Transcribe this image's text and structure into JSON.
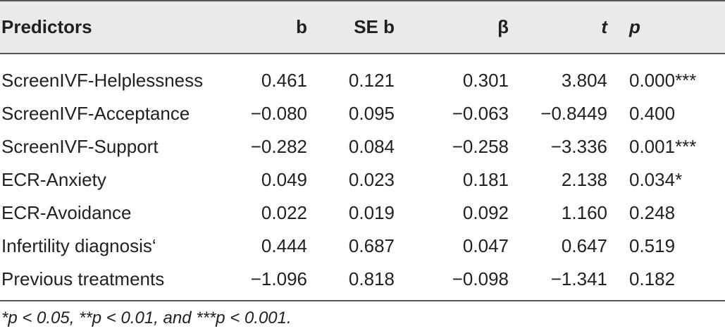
{
  "table": {
    "headers": [
      "Predictors",
      "b",
      "SE b",
      "β",
      "t",
      "p"
    ],
    "rows": [
      [
        "ScreenIVF-Helplessness",
        "0.461",
        "0.121",
        "0.301",
        "3.804",
        "0.000***"
      ],
      [
        "ScreenIVF-Acceptance",
        "−0.080",
        "0.095",
        "−0.063",
        "−0.8449",
        "0.400"
      ],
      [
        "ScreenIVF-Support",
        "−0.282",
        "0.084",
        "−0.258",
        "−3.336",
        "0.001***"
      ],
      [
        "ECR-Anxiety",
        "0.049",
        "0.023",
        "0.181",
        "2.138",
        "0.034*"
      ],
      [
        "ECR-Avoidance",
        "0.022",
        "0.019",
        "0.092",
        "1.160",
        "0.248"
      ],
      [
        "Infertility diagnosis‘",
        "0.444",
        "0.687",
        "0.047",
        "0.647",
        "0.519"
      ],
      [
        "Previous treatments",
        "−1.096",
        "0.818",
        "−0.098",
        "−1.341",
        "0.182"
      ]
    ]
  },
  "footnote": "*p < 0.05, **p < 0.01, and ***p < 0.001.",
  "colors": {
    "header_background": "#e9eaeb",
    "rule": "#555555",
    "text": "#231f20"
  }
}
